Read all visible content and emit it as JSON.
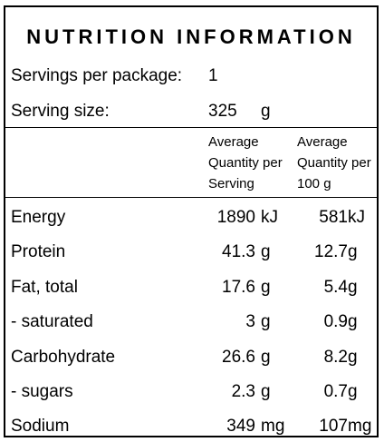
{
  "title": "NUTRITION INFORMATION",
  "servings": {
    "label": "Servings per package:",
    "value": "1"
  },
  "serving_size": {
    "label": "Serving size:",
    "value": "325",
    "unit": "g"
  },
  "columns": {
    "per_serving": [
      "Average",
      "Quantity per",
      "Serving"
    ],
    "per_100g": [
      "Average",
      "Quantity per",
      "100 g"
    ]
  },
  "rows": [
    {
      "name": "Energy",
      "serving": "1890",
      "serving_unit": "kJ",
      "per100": "581",
      "per100_unit": "kJ"
    },
    {
      "name": "Protein",
      "serving": "41.3",
      "serving_unit": "g",
      "per100": "12.7",
      "per100_unit": "g"
    },
    {
      "name": "Fat, total",
      "serving": "17.6",
      "serving_unit": "g",
      "per100": "5.4",
      "per100_unit": "g"
    },
    {
      "name": "- saturated",
      "serving": "3",
      "serving_unit": "g",
      "per100": "0.9",
      "per100_unit": "g"
    },
    {
      "name": "Carbohydrate",
      "serving": "26.6",
      "serving_unit": "g",
      "per100": "8.2",
      "per100_unit": "g"
    },
    {
      "name": "- sugars",
      "serving": "2.3",
      "serving_unit": "g",
      "per100": "0.7",
      "per100_unit": "g"
    },
    {
      "name": "Sodium",
      "serving": "349",
      "serving_unit": "mg",
      "per100": "107",
      "per100_unit": "mg"
    }
  ]
}
